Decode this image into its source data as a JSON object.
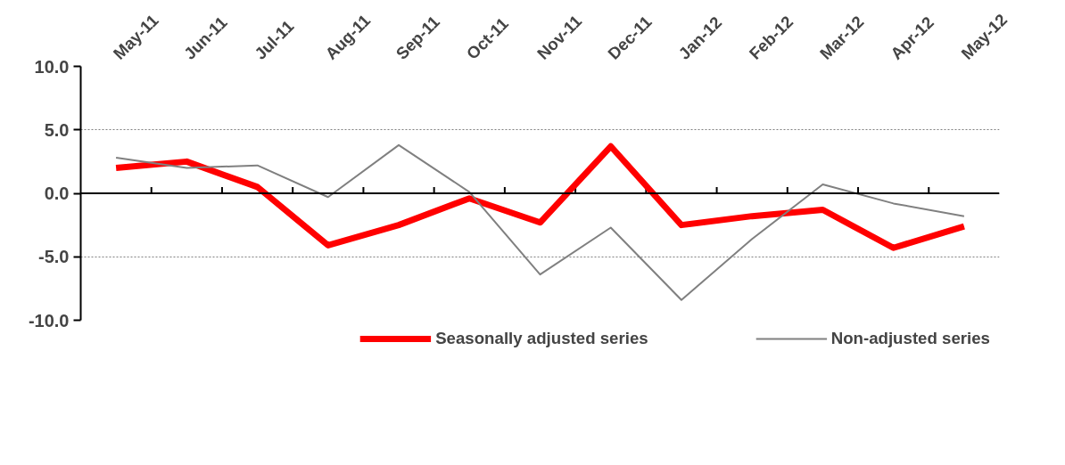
{
  "chart_data": {
    "type": "line",
    "categories": [
      "May-11",
      "Jun-11",
      "Jul-11",
      "Aug-11",
      "Sep-11",
      "Oct-11",
      "Nov-11",
      "Dec-11",
      "Jan-12",
      "Feb-12",
      "Mar-12",
      "Apr-12",
      "May-12"
    ],
    "series": [
      {
        "name": "Seasonally adjusted series",
        "color": "#ff0000",
        "values": [
          2.0,
          2.5,
          0.5,
          -4.1,
          -2.5,
          -0.4,
          -2.3,
          3.7,
          -2.5,
          -1.8,
          -1.3,
          -4.3,
          -2.6
        ]
      },
      {
        "name": "Non-adjusted series",
        "color": "#808080",
        "values": [
          2.8,
          2.0,
          2.2,
          -0.3,
          3.8,
          0.1,
          -6.4,
          -2.7,
          -8.4,
          -3.6,
          0.7,
          -0.8,
          -1.8
        ]
      }
    ],
    "ylim": [
      -10,
      10
    ],
    "yticks": [
      {
        "value": -10,
        "label": "-10.0"
      },
      {
        "value": -5,
        "label": "-5.0"
      },
      {
        "value": 0,
        "label": "0.0"
      },
      {
        "value": 5,
        "label": "5.0"
      },
      {
        "value": 10,
        "label": "10.0"
      }
    ],
    "ref_lines": [
      {
        "axis": "y",
        "value": 0,
        "color": "#000000"
      }
    ],
    "grid": "y",
    "legend": "bottom",
    "marker": "none",
    "line_style": "solid"
  }
}
